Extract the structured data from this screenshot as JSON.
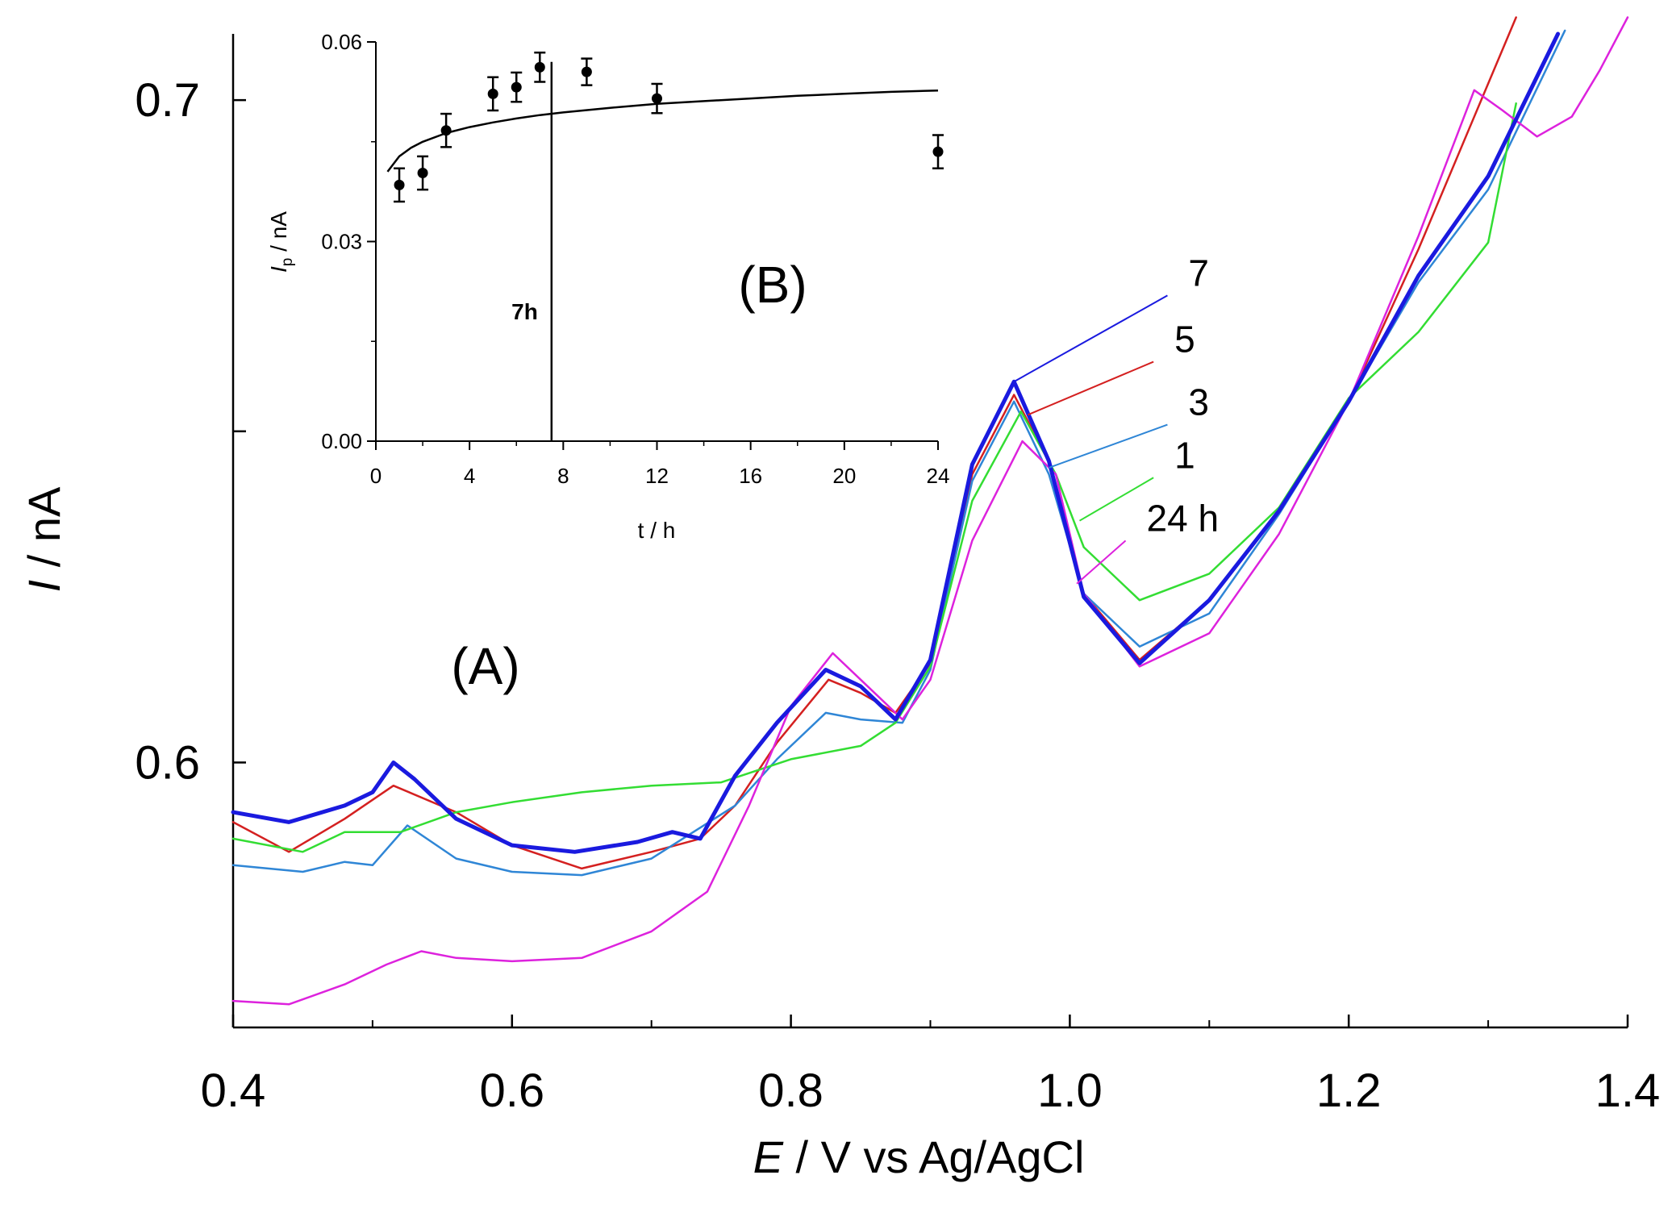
{
  "chart_data": [
    {
      "panel": "(A)",
      "type": "line",
      "xlabel": "E / V vs Ag/AgCl",
      "xlabel_parts": {
        "italic": "E",
        "rest": " / V vs Ag/AgCl"
      },
      "ylabel": "I / nA",
      "ylabel_parts": {
        "italic": "I",
        "rest": " / nA"
      },
      "xlim": [
        0.4,
        1.4
      ],
      "ylim": [
        0.56,
        0.71
      ],
      "xticks": [
        0.4,
        0.6,
        0.8,
        1.0,
        1.2,
        1.4
      ],
      "xtick_labels": [
        "0.4",
        "0.6",
        "0.8",
        "1.0",
        "1.2",
        "1.4"
      ],
      "yticks": [
        0.6,
        0.65,
        0.7
      ],
      "ytick_labels": [
        "0.6",
        "",
        "0.7"
      ],
      "grid": false,
      "series": [
        {
          "name": "7",
          "color": "#1a1adf",
          "width": 5,
          "x": [
            0.4,
            0.44,
            0.48,
            0.5,
            0.515,
            0.53,
            0.56,
            0.6,
            0.645,
            0.69,
            0.715,
            0.735,
            0.76,
            0.79,
            0.825,
            0.85,
            0.875,
            0.9,
            0.93,
            0.96,
            0.985,
            1.01,
            1.05,
            1.1,
            1.15,
            1.2,
            1.25,
            1.3,
            1.35
          ],
          "y": [
            0.5925,
            0.591,
            0.5935,
            0.5955,
            0.6,
            0.5975,
            0.5915,
            0.5875,
            0.5865,
            0.588,
            0.5895,
            0.5885,
            0.598,
            0.606,
            0.614,
            0.6115,
            0.6065,
            0.6155,
            0.645,
            0.6575,
            0.6455,
            0.625,
            0.615,
            0.6245,
            0.638,
            0.6545,
            0.6735,
            0.6885,
            0.71
          ]
        },
        {
          "name": "5",
          "color": "#d42020",
          "width": 2.5,
          "x": [
            0.4,
            0.44,
            0.48,
            0.515,
            0.56,
            0.6,
            0.65,
            0.7,
            0.735,
            0.76,
            0.79,
            0.827,
            0.85,
            0.875,
            0.9,
            0.93,
            0.96,
            0.985,
            1.01,
            1.05,
            1.1,
            1.15,
            1.2,
            1.25,
            1.29,
            1.32
          ],
          "y": [
            0.591,
            0.5865,
            0.5915,
            0.5965,
            0.5925,
            0.5875,
            0.584,
            0.5865,
            0.5885,
            0.5935,
            0.603,
            0.6125,
            0.6105,
            0.6075,
            0.615,
            0.6435,
            0.6555,
            0.6455,
            0.6255,
            0.6155,
            0.6245,
            0.638,
            0.6545,
            0.6775,
            0.6975,
            0.7125
          ]
        },
        {
          "name": "3",
          "color": "#2f86d6",
          "width": 2.5,
          "x": [
            0.4,
            0.45,
            0.48,
            0.5,
            0.525,
            0.56,
            0.6,
            0.65,
            0.7,
            0.76,
            0.79,
            0.825,
            0.85,
            0.88,
            0.9,
            0.93,
            0.96,
            0.985,
            1.01,
            1.05,
            1.1,
            1.15,
            1.2,
            1.25,
            1.3,
            1.355
          ],
          "y": [
            0.5845,
            0.5835,
            0.585,
            0.5845,
            0.5905,
            0.5855,
            0.5835,
            0.583,
            0.5855,
            0.5935,
            0.6005,
            0.6075,
            0.6065,
            0.606,
            0.614,
            0.6425,
            0.6545,
            0.6435,
            0.6255,
            0.6175,
            0.6225,
            0.6375,
            0.6545,
            0.6725,
            0.6865,
            0.7105
          ]
        },
        {
          "name": "1",
          "color": "#33dd33",
          "width": 2.5,
          "x": [
            0.4,
            0.45,
            0.48,
            0.52,
            0.56,
            0.6,
            0.65,
            0.7,
            0.75,
            0.8,
            0.85,
            0.875,
            0.9,
            0.93,
            0.965,
            0.99,
            1.01,
            1.05,
            1.1,
            1.15,
            1.2,
            1.25,
            1.3,
            1.32
          ],
          "y": [
            0.5885,
            0.5865,
            0.5895,
            0.5895,
            0.5925,
            0.594,
            0.5955,
            0.5965,
            0.597,
            0.6005,
            0.6025,
            0.606,
            0.6145,
            0.6395,
            0.653,
            0.6435,
            0.6325,
            0.6245,
            0.6285,
            0.6385,
            0.655,
            0.665,
            0.6785,
            0.6995
          ]
        },
        {
          "name": "24 h",
          "color": "#dd22dd",
          "width": 2.5,
          "x": [
            0.4,
            0.44,
            0.48,
            0.51,
            0.535,
            0.56,
            0.6,
            0.65,
            0.7,
            0.74,
            0.77,
            0.8,
            0.83,
            0.85,
            0.88,
            0.9,
            0.93,
            0.966,
            0.99,
            1.01,
            1.05,
            1.1,
            1.15,
            1.2,
            1.25,
            1.29,
            1.31,
            1.335,
            1.36,
            1.38,
            1.4
          ],
          "y": [
            0.564,
            0.5635,
            0.5665,
            0.5695,
            0.5715,
            0.5705,
            0.57,
            0.5705,
            0.5745,
            0.5805,
            0.5935,
            0.6085,
            0.6165,
            0.6125,
            0.6065,
            0.6125,
            0.6335,
            0.6485,
            0.6435,
            0.6255,
            0.6145,
            0.6195,
            0.6345,
            0.6545,
            0.6795,
            0.7015,
            0.6985,
            0.6945,
            0.6975,
            0.7045,
            0.7125
          ]
        }
      ],
      "labels": [
        {
          "text": "7",
          "color": "#1a1adf",
          "from": [
            0.96,
            0.6575
          ],
          "to": [
            1.07,
            0.6705
          ]
        },
        {
          "text": "5",
          "color": "#d42020",
          "from": [
            0.97,
            0.6525
          ],
          "to": [
            1.06,
            0.6605
          ]
        },
        {
          "text": "3",
          "color": "#2f86d6",
          "from": [
            0.985,
            0.6445
          ],
          "to": [
            1.07,
            0.651
          ]
        },
        {
          "text": "1",
          "color": "#33dd33",
          "from": [
            1.007,
            0.6365
          ],
          "to": [
            1.06,
            0.643
          ]
        },
        {
          "text": "24 h",
          "color": "#dd22dd",
          "from": [
            1.005,
            0.627
          ],
          "to": [
            1.04,
            0.6335
          ]
        }
      ]
    },
    {
      "panel": "(B)",
      "type": "scatter",
      "xlabel": "t / h",
      "ylabel": "Ip / nA",
      "ylabel_parts": {
        "italic": "I",
        "sub": "p",
        "rest": " / nA"
      },
      "xlim": [
        0,
        24
      ],
      "ylim": [
        0,
        0.06
      ],
      "xticks": [
        0,
        4,
        8,
        12,
        16,
        20,
        24
      ],
      "xtick_labels": [
        "0",
        "4",
        "8",
        "12",
        "16",
        "20",
        "24"
      ],
      "yticks": [
        0.0,
        0.03,
        0.06
      ],
      "ytick_labels": [
        "0.00",
        "0.03",
        "0.06"
      ],
      "grid": false,
      "points": {
        "x": [
          1,
          2,
          3,
          5,
          6,
          7,
          9,
          12,
          24
        ],
        "y": [
          0.0385,
          0.0403,
          0.0467,
          0.0522,
          0.0532,
          0.0562,
          0.0555,
          0.0515,
          0.0435
        ],
        "err": [
          0.0025,
          0.0025,
          0.0025,
          0.0025,
          0.0022,
          0.0022,
          0.002,
          0.0022,
          0.0025
        ]
      },
      "fit": {
        "x": [
          0.5,
          1,
          1.5,
          2,
          3,
          4,
          5,
          6,
          7,
          8,
          10,
          12,
          14,
          16,
          18,
          20,
          22,
          24
        ],
        "y": [
          0.0405,
          0.0428,
          0.0441,
          0.045,
          0.0463,
          0.0472,
          0.0479,
          0.0485,
          0.049,
          0.0494,
          0.0501,
          0.0507,
          0.0511,
          0.0515,
          0.0519,
          0.0522,
          0.0525,
          0.0527
        ]
      },
      "vline": {
        "x": 7.5,
        "label": "7h"
      }
    }
  ]
}
